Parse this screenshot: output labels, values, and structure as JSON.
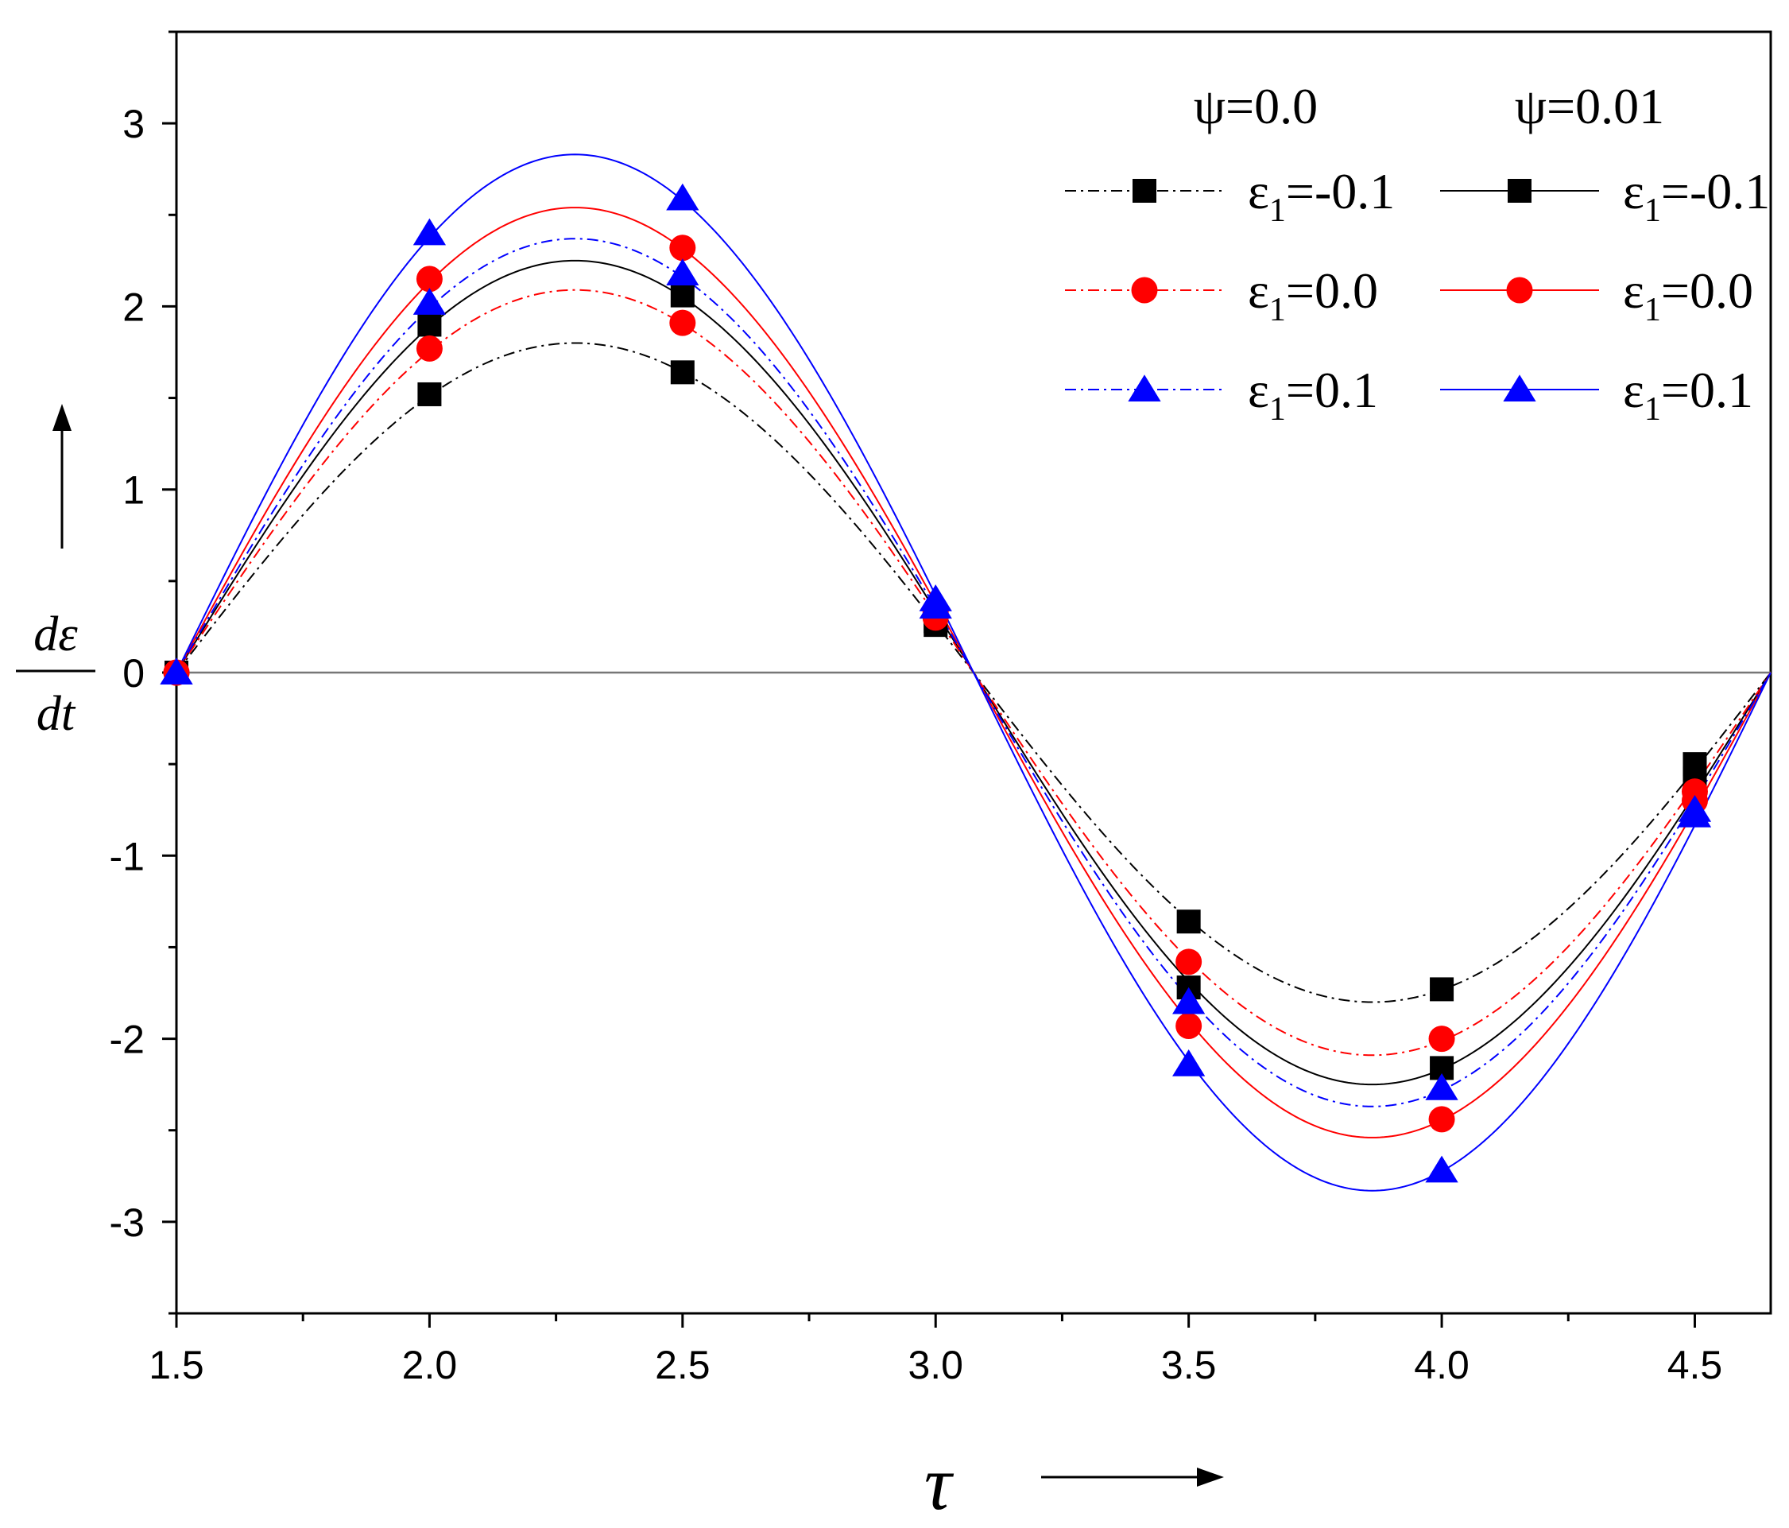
{
  "chart_data": {
    "type": "line",
    "title": "",
    "xlabel": "τ",
    "ylabel_top": "dε",
    "ylabel_bottom": "dt",
    "xlim": [
      1.5,
      4.65
    ],
    "ylim": [
      -3.5,
      3.5
    ],
    "xticks": [
      1.5,
      2.0,
      2.5,
      3.0,
      3.5,
      4.0,
      4.5
    ],
    "xtick_labels": [
      "1.5",
      "2.0",
      "2.5",
      "3.0",
      "3.5",
      "4.0",
      "4.5"
    ],
    "yticks": [
      -3,
      -2,
      -1,
      0,
      1,
      2,
      3
    ],
    "ytick_labels": [
      "-3",
      "-2",
      "-1",
      "0",
      "1",
      "2",
      "3"
    ],
    "grid": false,
    "zero_line": true,
    "curve_model": "A·sin(2π(τ−1.5)/3.15)",
    "legend": {
      "placement": "top-right",
      "group_headers": [
        "ψ=0.0",
        "ψ=0.01"
      ],
      "entries": [
        {
          "col": 0,
          "row": 0,
          "text": "ε",
          "sub": "1",
          "value": "=-0.1"
        },
        {
          "col": 1,
          "row": 0,
          "text": "ε",
          "sub": "1",
          "value": "=-0.1"
        },
        {
          "col": 0,
          "row": 1,
          "text": "ε",
          "sub": "1",
          "value": "=0.0"
        },
        {
          "col": 1,
          "row": 1,
          "text": "ε",
          "sub": "1",
          "value": "=0.0"
        },
        {
          "col": 0,
          "row": 2,
          "text": "ε",
          "sub": "1",
          "value": "=0.1"
        },
        {
          "col": 1,
          "row": 2,
          "text": "ε",
          "sub": "1",
          "value": "=0.1"
        }
      ]
    },
    "series": [
      {
        "psi": "0.0",
        "eps": "-0.1",
        "color": "#000000",
        "dash": "dashdot",
        "marker": "square",
        "amplitude": 1.8,
        "markers": [
          [
            1.5,
            0.0
          ],
          [
            2.0,
            1.52
          ],
          [
            2.5,
            1.64
          ],
          [
            3.0,
            0.26
          ],
          [
            3.5,
            -1.36
          ],
          [
            4.0,
            -1.73
          ],
          [
            4.5,
            -0.5
          ]
        ]
      },
      {
        "psi": "0.01",
        "eps": "-0.1",
        "color": "#000000",
        "dash": "solid",
        "marker": "square",
        "amplitude": 2.25,
        "markers": [
          [
            1.5,
            0.0
          ],
          [
            2.0,
            1.9
          ],
          [
            2.5,
            2.06
          ],
          [
            3.0,
            0.28
          ],
          [
            3.5,
            -1.72
          ],
          [
            4.0,
            -2.16
          ],
          [
            4.5,
            -0.58
          ]
        ]
      },
      {
        "psi": "0.0",
        "eps": "0.0",
        "color": "#ff0000",
        "dash": "dashdot",
        "marker": "circle",
        "amplitude": 2.09,
        "markers": [
          [
            1.5,
            0.0
          ],
          [
            2.0,
            1.77
          ],
          [
            2.5,
            1.91
          ],
          [
            3.0,
            0.3
          ],
          [
            3.5,
            -1.58
          ],
          [
            4.0,
            -2.0
          ],
          [
            4.5,
            -0.65
          ]
        ]
      },
      {
        "psi": "0.01",
        "eps": "0.0",
        "color": "#ff0000",
        "dash": "solid",
        "marker": "circle",
        "amplitude": 2.54,
        "markers": [
          [
            1.5,
            0.0
          ],
          [
            2.0,
            2.15
          ],
          [
            2.5,
            2.32
          ],
          [
            3.0,
            0.33
          ],
          [
            3.5,
            -1.93
          ],
          [
            4.0,
            -2.44
          ],
          [
            4.5,
            -0.7
          ]
        ]
      },
      {
        "psi": "0.0",
        "eps": "0.1",
        "color": "#0000ff",
        "dash": "dashdot",
        "marker": "triangle",
        "amplitude": 2.37,
        "markers": [
          [
            1.5,
            0.0
          ],
          [
            2.0,
            2.02
          ],
          [
            2.5,
            2.18
          ],
          [
            3.0,
            0.36
          ],
          [
            3.5,
            -1.8
          ],
          [
            4.0,
            -2.27
          ],
          [
            4.5,
            -0.75
          ]
        ]
      },
      {
        "psi": "0.01",
        "eps": "0.1",
        "color": "#0000ff",
        "dash": "solid",
        "marker": "triangle",
        "amplitude": 2.83,
        "markers": [
          [
            1.5,
            0.0
          ],
          [
            2.0,
            2.4
          ],
          [
            2.5,
            2.59
          ],
          [
            3.0,
            0.4
          ],
          [
            3.5,
            -2.14
          ],
          [
            4.0,
            -2.72
          ],
          [
            4.5,
            -0.78
          ]
        ]
      }
    ]
  }
}
